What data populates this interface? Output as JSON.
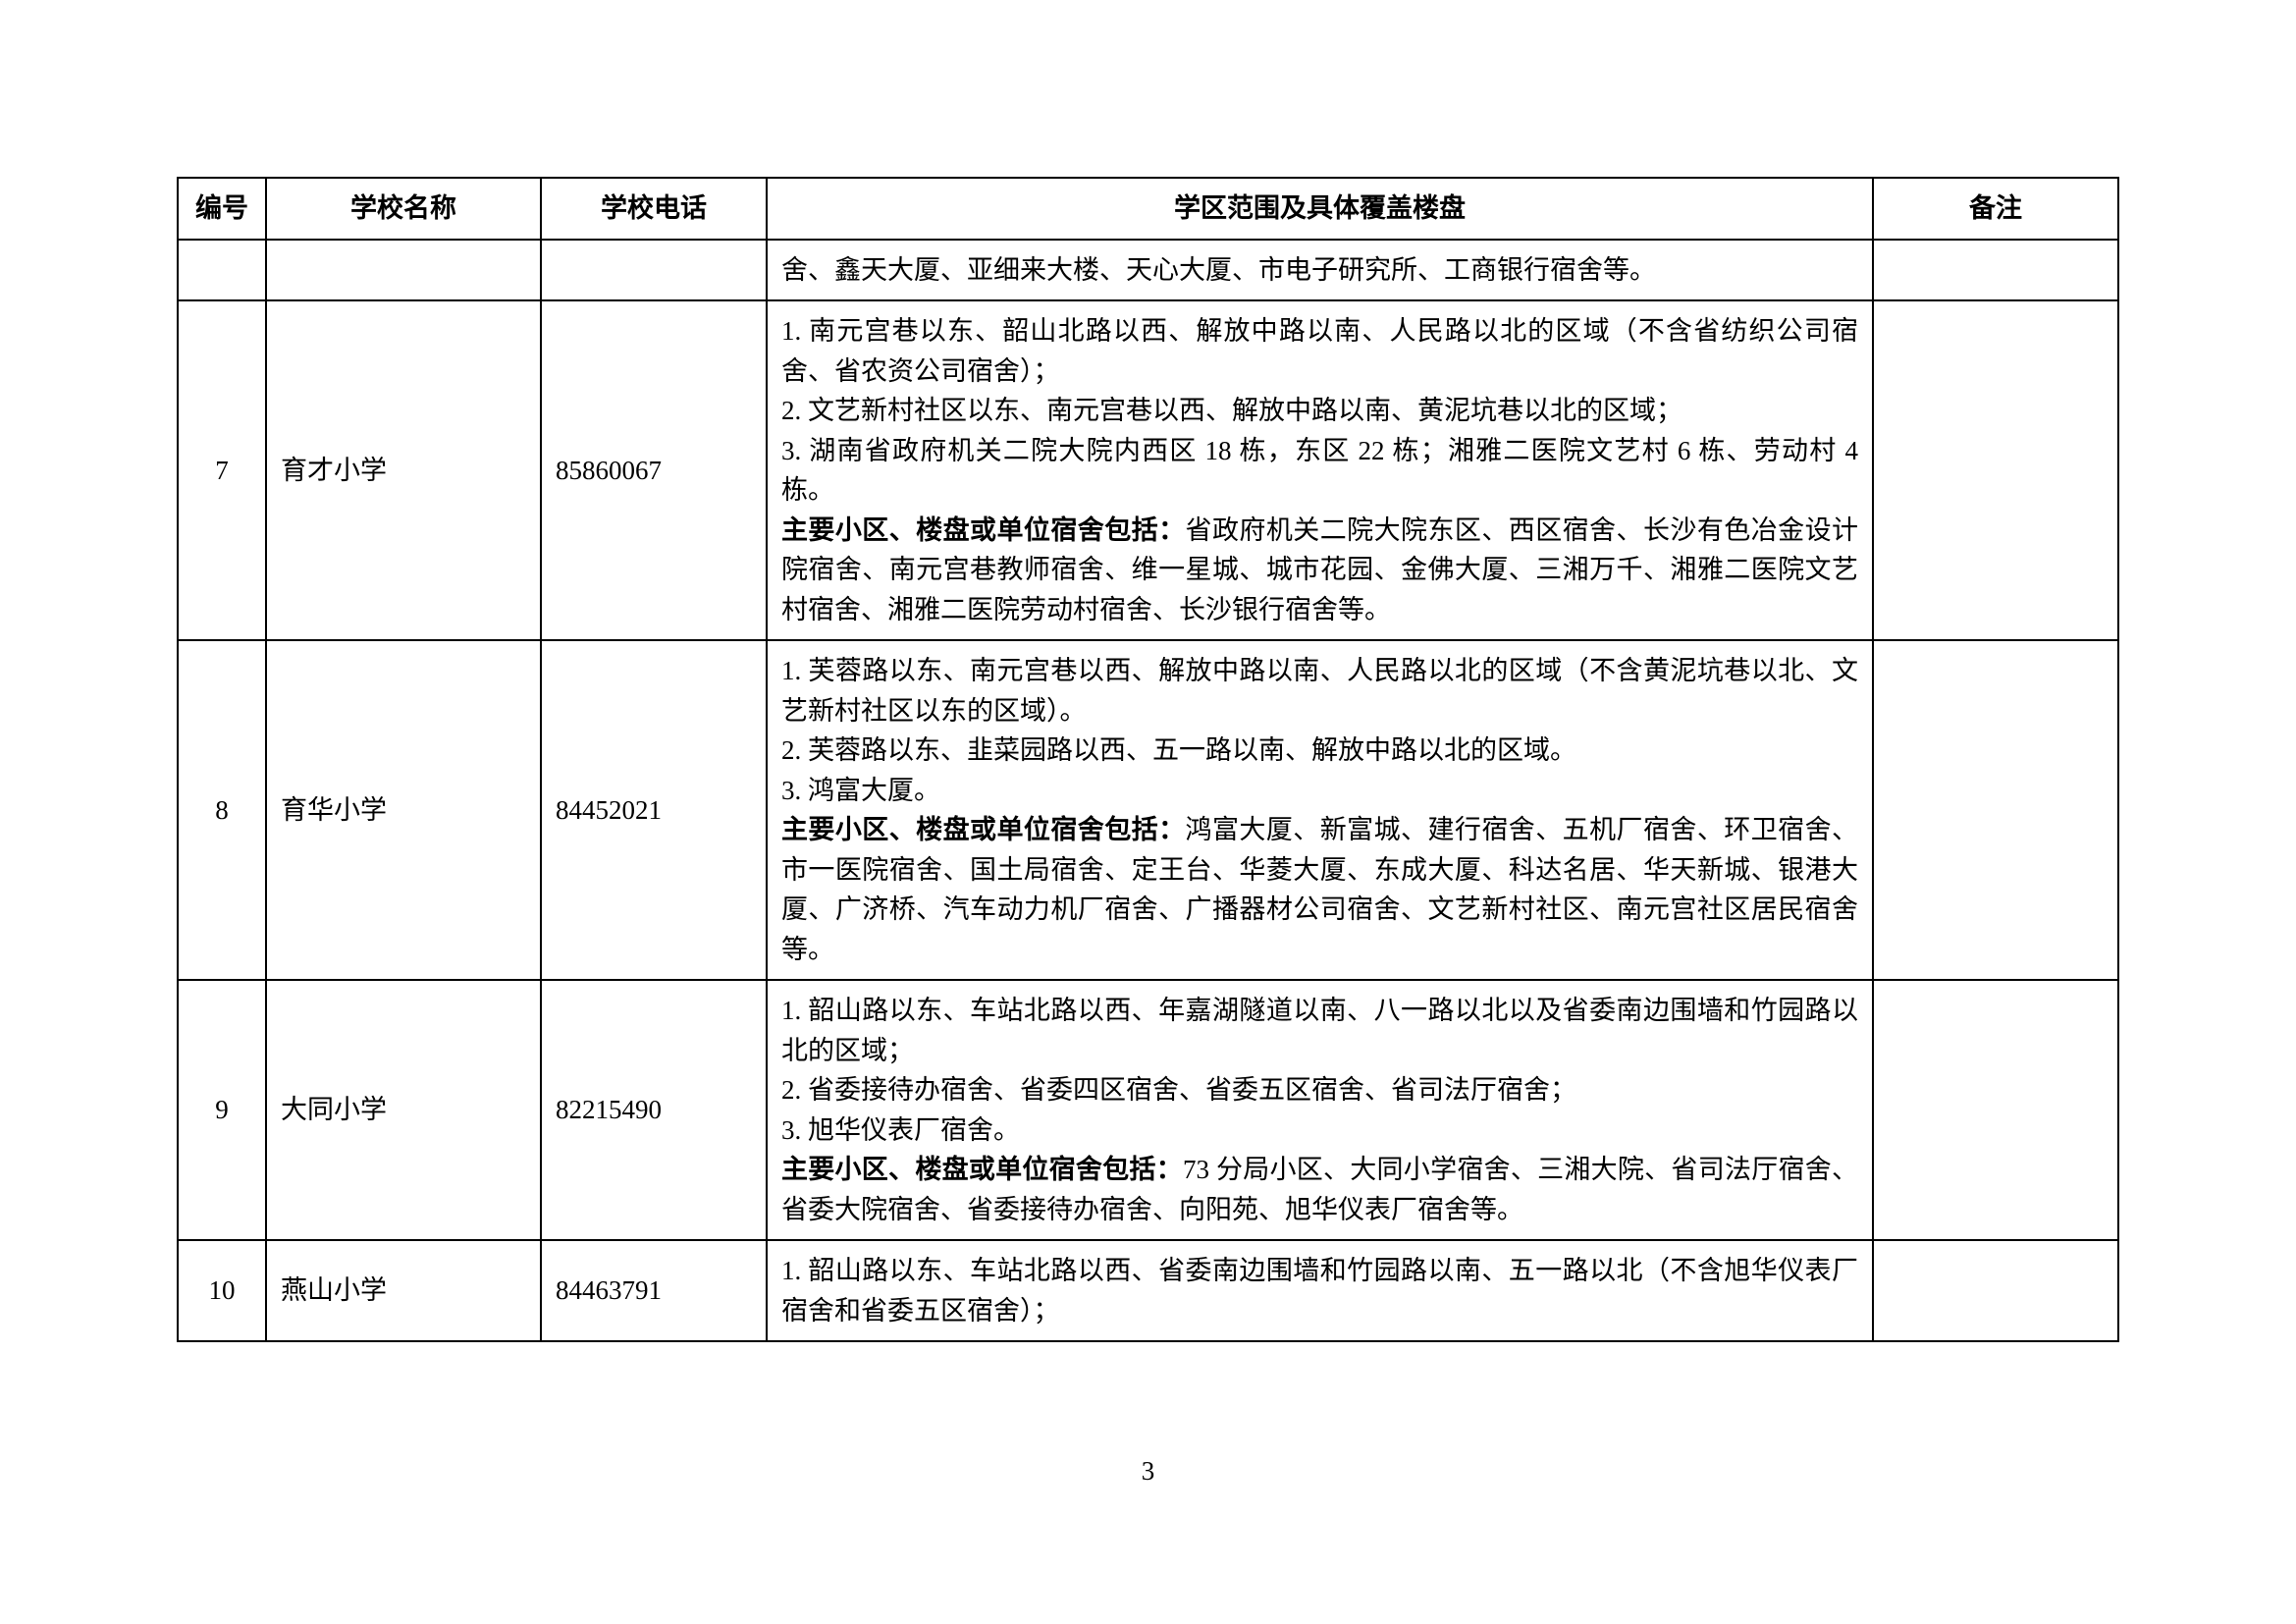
{
  "headers": {
    "id": "编号",
    "name": "学校名称",
    "phone": "学校电话",
    "desc": "学区范围及具体覆盖楼盘",
    "note": "备注"
  },
  "rows": [
    {
      "id": "",
      "name": "",
      "phone": "",
      "desc_pre": "舍、鑫天大厦、亚细来大楼、天心大厦、市电子研究所、工商银行宿舍等。",
      "bold": "",
      "desc_post": "",
      "note": ""
    },
    {
      "id": "7",
      "name": "育才小学",
      "phone": "85860067",
      "desc_pre": "1. 南元宫巷以东、韶山北路以西、解放中路以南、人民路以北的区域（不含省纺织公司宿舍、省农资公司宿舍）；\n2. 文艺新村社区以东、南元宫巷以西、解放中路以南、黄泥坑巷以北的区域；\n3. 湖南省政府机关二院大院内西区 18 栋，东区 22 栋；湘雅二医院文艺村 6 栋、劳动村 4 栋。\n",
      "bold": "主要小区、楼盘或单位宿舍包括：",
      "desc_post": "省政府机关二院大院东区、西区宿舍、长沙有色冶金设计院宿舍、南元宫巷教师宿舍、维一星城、城市花园、金佛大厦、三湘万千、湘雅二医院文艺村宿舍、湘雅二医院劳动村宿舍、长沙银行宿舍等。",
      "note": ""
    },
    {
      "id": "8",
      "name": "育华小学",
      "phone": "84452021",
      "desc_pre": "1. 芙蓉路以东、南元宫巷以西、解放中路以南、人民路以北的区域（不含黄泥坑巷以北、文艺新村社区以东的区域）。\n2. 芙蓉路以东、韭菜园路以西、五一路以南、解放中路以北的区域。\n3. 鸿富大厦。\n",
      "bold": "主要小区、楼盘或单位宿舍包括：",
      "desc_post": "鸿富大厦、新富城、建行宿舍、五机厂宿舍、环卫宿舍、市一医院宿舍、国土局宿舍、定王台、华菱大厦、东成大厦、科达名居、华天新城、银港大厦、广济桥、汽车动力机厂宿舍、广播器材公司宿舍、文艺新村社区、南元宫社区居民宿舍等。",
      "note": ""
    },
    {
      "id": "9",
      "name": "大同小学",
      "phone": "82215490",
      "desc_pre": "1. 韶山路以东、车站北路以西、年嘉湖隧道以南、八一路以北以及省委南边围墙和竹园路以北的区域；\n2. 省委接待办宿舍、省委四区宿舍、省委五区宿舍、省司法厅宿舍；\n3. 旭华仪表厂宿舍。\n",
      "bold": "主要小区、楼盘或单位宿舍包括：",
      "desc_post": "73 分局小区、大同小学宿舍、三湘大院、省司法厅宿舍、省委大院宿舍、省委接待办宿舍、向阳苑、旭华仪表厂宿舍等。",
      "note": ""
    },
    {
      "id": "10",
      "name": "燕山小学",
      "phone": "84463791",
      "desc_pre": "1. 韶山路以东、车站北路以西、省委南边围墙和竹园路以南、五一路以北（不含旭华仪表厂宿舍和省委五区宿舍）；",
      "bold": "",
      "desc_post": "",
      "note": ""
    }
  ],
  "page_number": "3"
}
